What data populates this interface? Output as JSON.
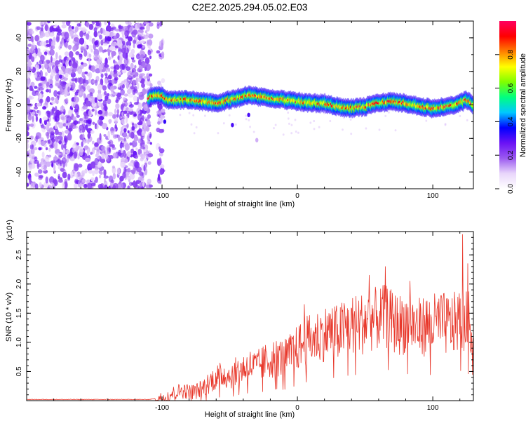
{
  "title": "C2E2.2025.294.05.02.E03",
  "chart_data": [
    {
      "type": "heatmap",
      "xlabel": "Height of straight line (km)",
      "ylabel": "Frequency (Hz)",
      "xlim": [
        -200,
        130
      ],
      "ylim": [
        -50,
        50
      ],
      "x_ticks": [
        -100,
        0,
        100
      ],
      "x_tick_labels": [
        "-100",
        "0",
        "100"
      ],
      "y_ticks": [
        -40,
        -20,
        0,
        20,
        40
      ],
      "y_tick_labels": [
        "-40",
        "-20",
        "0",
        "20",
        "40"
      ],
      "grid": false,
      "noise_region": {
        "x_range": [
          -200,
          -108
        ],
        "strip_x": [
          -103,
          -99
        ]
      },
      "ridge": {
        "description_series": "dominant frequency vs height",
        "x": [
          -110,
          -105,
          -100,
          -95,
          -90,
          -80,
          -70,
          -60,
          -50,
          -40,
          -35,
          -30,
          -20,
          -10,
          0,
          10,
          20,
          30,
          40,
          50,
          60,
          70,
          80,
          90,
          100,
          110,
          120,
          125,
          130
        ],
        "y": [
          4,
          6,
          5,
          3,
          3,
          3,
          2,
          1,
          3,
          5,
          6,
          5,
          4,
          3,
          2,
          1,
          1,
          -1,
          -2,
          -1,
          1,
          2,
          1,
          -1,
          -2,
          -1,
          1,
          3,
          0
        ]
      },
      "colorbar": {
        "label": "Normalized spectral amplitude",
        "range": [
          0,
          1
        ],
        "ticks": [
          0.0,
          0.2,
          0.4,
          0.6,
          0.8
        ],
        "tick_labels": [
          "0.0",
          "0.2",
          "0.4",
          "0.6",
          "0.8"
        ],
        "colors": [
          "#ffffff",
          "#e9d6fb",
          "#9b5af0",
          "#6a12f5",
          "#0000ff",
          "#00c8ff",
          "#00ff80",
          "#7fff00",
          "#ffff00",
          "#ff8000",
          "#ff0000",
          "#ff0060"
        ]
      }
    },
    {
      "type": "line",
      "xlabel": "Height of straight line (km)",
      "ylabel": "SNR (10 * v/v)",
      "y_multiplier": "(x10⁴)",
      "xlim": [
        -200,
        130
      ],
      "ylim": [
        0,
        2.9
      ],
      "x_ticks": [
        -100,
        0,
        100
      ],
      "x_tick_labels": [
        "-100",
        "0",
        "100"
      ],
      "y_ticks": [
        0.5,
        1.0,
        1.5,
        2.0,
        2.5
      ],
      "y_tick_labels": [
        "0.5",
        "1.0",
        "1.5",
        "2.0",
        "2.5"
      ],
      "grid": false,
      "series": [
        {
          "color": "#e8372a",
          "x": [
            -200,
            -150,
            -110,
            -100,
            -95,
            -90,
            -85,
            -80,
            -75,
            -70,
            -65,
            -60,
            -55,
            -50,
            -45,
            -40,
            -35,
            -30,
            -25,
            -20,
            -15,
            -10,
            -5,
            0,
            5,
            10,
            15,
            20,
            25,
            30,
            35,
            40,
            45,
            50,
            55,
            60,
            65,
            70,
            75,
            80,
            85,
            90,
            95,
            100,
            105,
            110,
            115,
            120,
            125,
            130
          ],
          "y": [
            0.02,
            0.02,
            0.02,
            0.05,
            0.1,
            0.14,
            0.18,
            0.15,
            0.16,
            0.22,
            0.32,
            0.4,
            0.45,
            0.42,
            0.5,
            0.55,
            0.6,
            0.58,
            0.65,
            0.7,
            0.75,
            0.72,
            0.8,
            0.9,
            1.0,
            1.05,
            1.1,
            1.15,
            1.2,
            1.15,
            1.25,
            1.3,
            1.3,
            1.35,
            1.4,
            1.4,
            1.45,
            1.35,
            1.3,
            1.35,
            1.3,
            1.25,
            1.3,
            1.3,
            1.35,
            1.3,
            1.3,
            1.4,
            1.35,
            1.3
          ],
          "peaks": [
            {
              "x": 5,
              "y": 1.65
            },
            {
              "x": 53,
              "y": 2.15
            },
            {
              "x": 65,
              "y": 2.3
            },
            {
              "x": 83,
              "y": 2.05
            },
            {
              "x": 122,
              "y": 2.85
            },
            {
              "x": 126,
              "y": 2.35
            }
          ]
        }
      ]
    }
  ]
}
